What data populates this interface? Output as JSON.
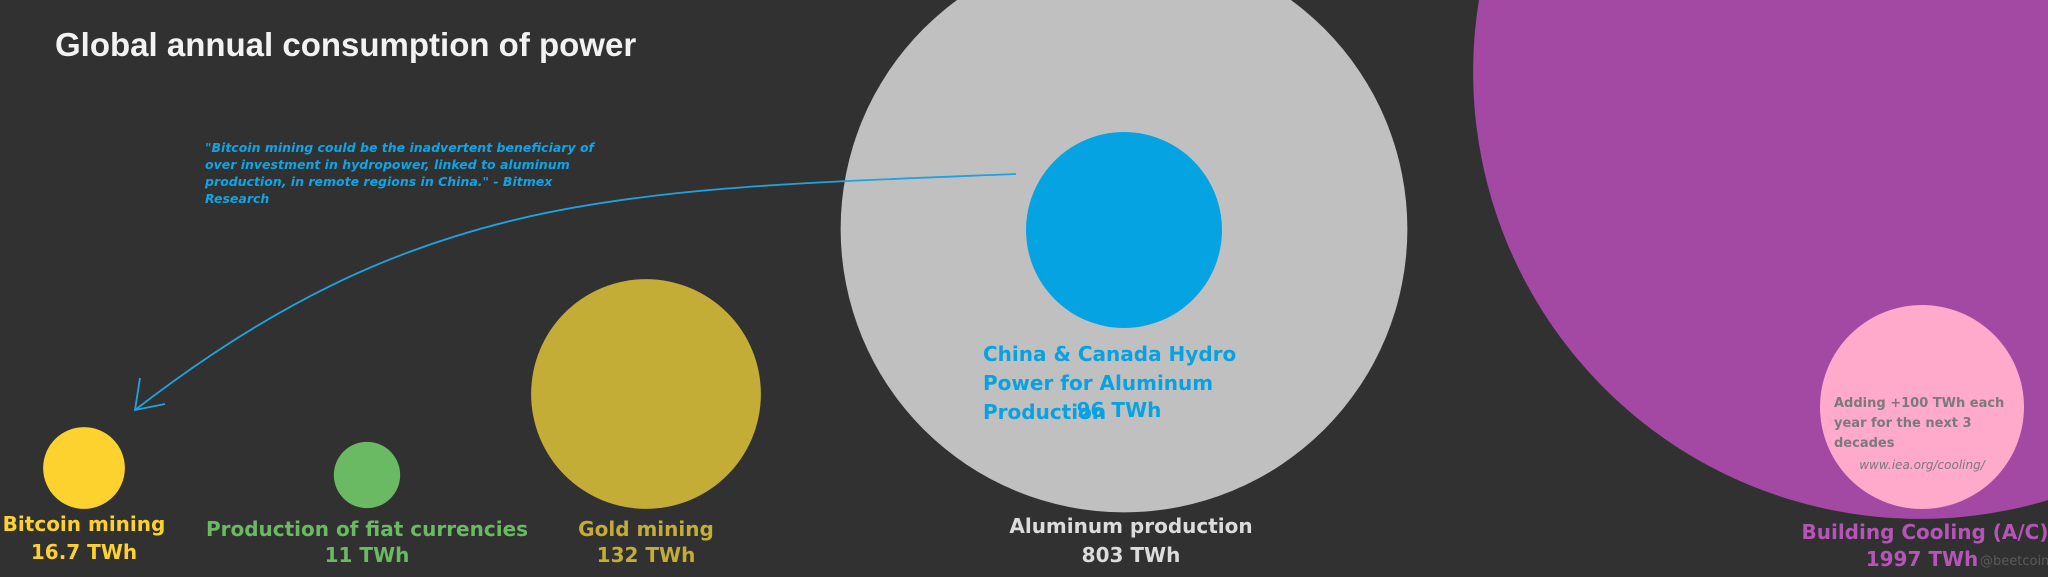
{
  "chart_data": {
    "type": "bubble",
    "title": "Global annual consumption of power",
    "annotation": "\"Bitcoin mining could be the inadvertent beneficiary of over investment in hydropower, linked to aluminum production, in remote regions in China.\" - Bitmex Research",
    "note": "Adding +100 TWh each year for the next 3 decades",
    "source": "www.iea.org/cooling/",
    "credit": "@beetcoin",
    "categories": [
      "Bitcoin mining",
      "Production of fiat currencies",
      "Gold mining",
      "Aluminum production",
      "China & Canada Hydro Power for Aluminum Production",
      "Building Cooling (A/C)"
    ],
    "values": [
      16.7,
      11,
      132,
      803,
      96,
      1997
    ],
    "value_labels": [
      "16.7 TWh",
      "11 TWh",
      "132 TWh",
      "803 TWh",
      "96 TWh",
      "1997 TWh"
    ],
    "colors": [
      "#fdd22f",
      "#6aba63",
      "#c4ad37",
      "#c0c0c0",
      "#06a3e3",
      "#a349a4"
    ]
  }
}
